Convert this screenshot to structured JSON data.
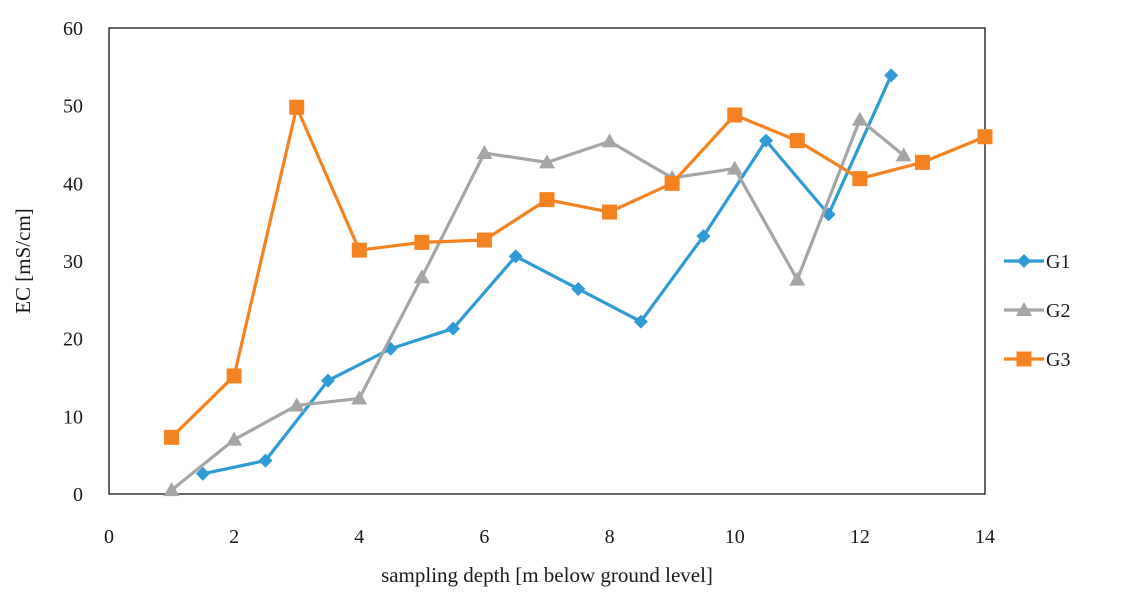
{
  "chart_data": {
    "type": "line",
    "title": "",
    "xlabel": "sampling depth [m below ground level]",
    "ylabel": "EC [mS/cm]",
    "xlim": [
      0,
      14
    ],
    "ylim": [
      0,
      60
    ],
    "xticks": [
      0,
      2,
      4,
      6,
      8,
      10,
      12,
      14
    ],
    "yticks": [
      0,
      10,
      20,
      30,
      40,
      50,
      60
    ],
    "grid": false,
    "legend_position": "right",
    "series": [
      {
        "name": "G1",
        "color": "#2E9BD6",
        "marker": "diamond",
        "x": [
          1.5,
          2.5,
          3.5,
          4.5,
          5.5,
          6.5,
          7.5,
          8.5,
          9.5,
          10.5,
          11.5,
          12.5
        ],
        "y": [
          2.6,
          4.3,
          14.6,
          18.7,
          21.3,
          30.6,
          26.4,
          22.2,
          33.2,
          45.5,
          36.0,
          53.9
        ]
      },
      {
        "name": "G2",
        "color": "#A5A5A5",
        "marker": "triangle",
        "x": [
          1,
          2,
          3,
          4,
          5,
          6,
          7,
          8,
          9,
          10,
          11,
          12,
          12.7
        ],
        "y": [
          0.5,
          7.0,
          11.4,
          12.3,
          27.9,
          43.9,
          42.7,
          45.4,
          40.7,
          41.9,
          27.6,
          48.2,
          43.6
        ]
      },
      {
        "name": "G3",
        "color": "#F58220",
        "marker": "square",
        "x": [
          1,
          2,
          3,
          4,
          5,
          6,
          7,
          8,
          9,
          10,
          11,
          12,
          13,
          14
        ],
        "y": [
          7.3,
          15.2,
          49.8,
          31.4,
          32.4,
          32.7,
          37.9,
          36.3,
          40.0,
          48.8,
          45.5,
          40.6,
          42.7,
          46.0
        ]
      }
    ]
  }
}
